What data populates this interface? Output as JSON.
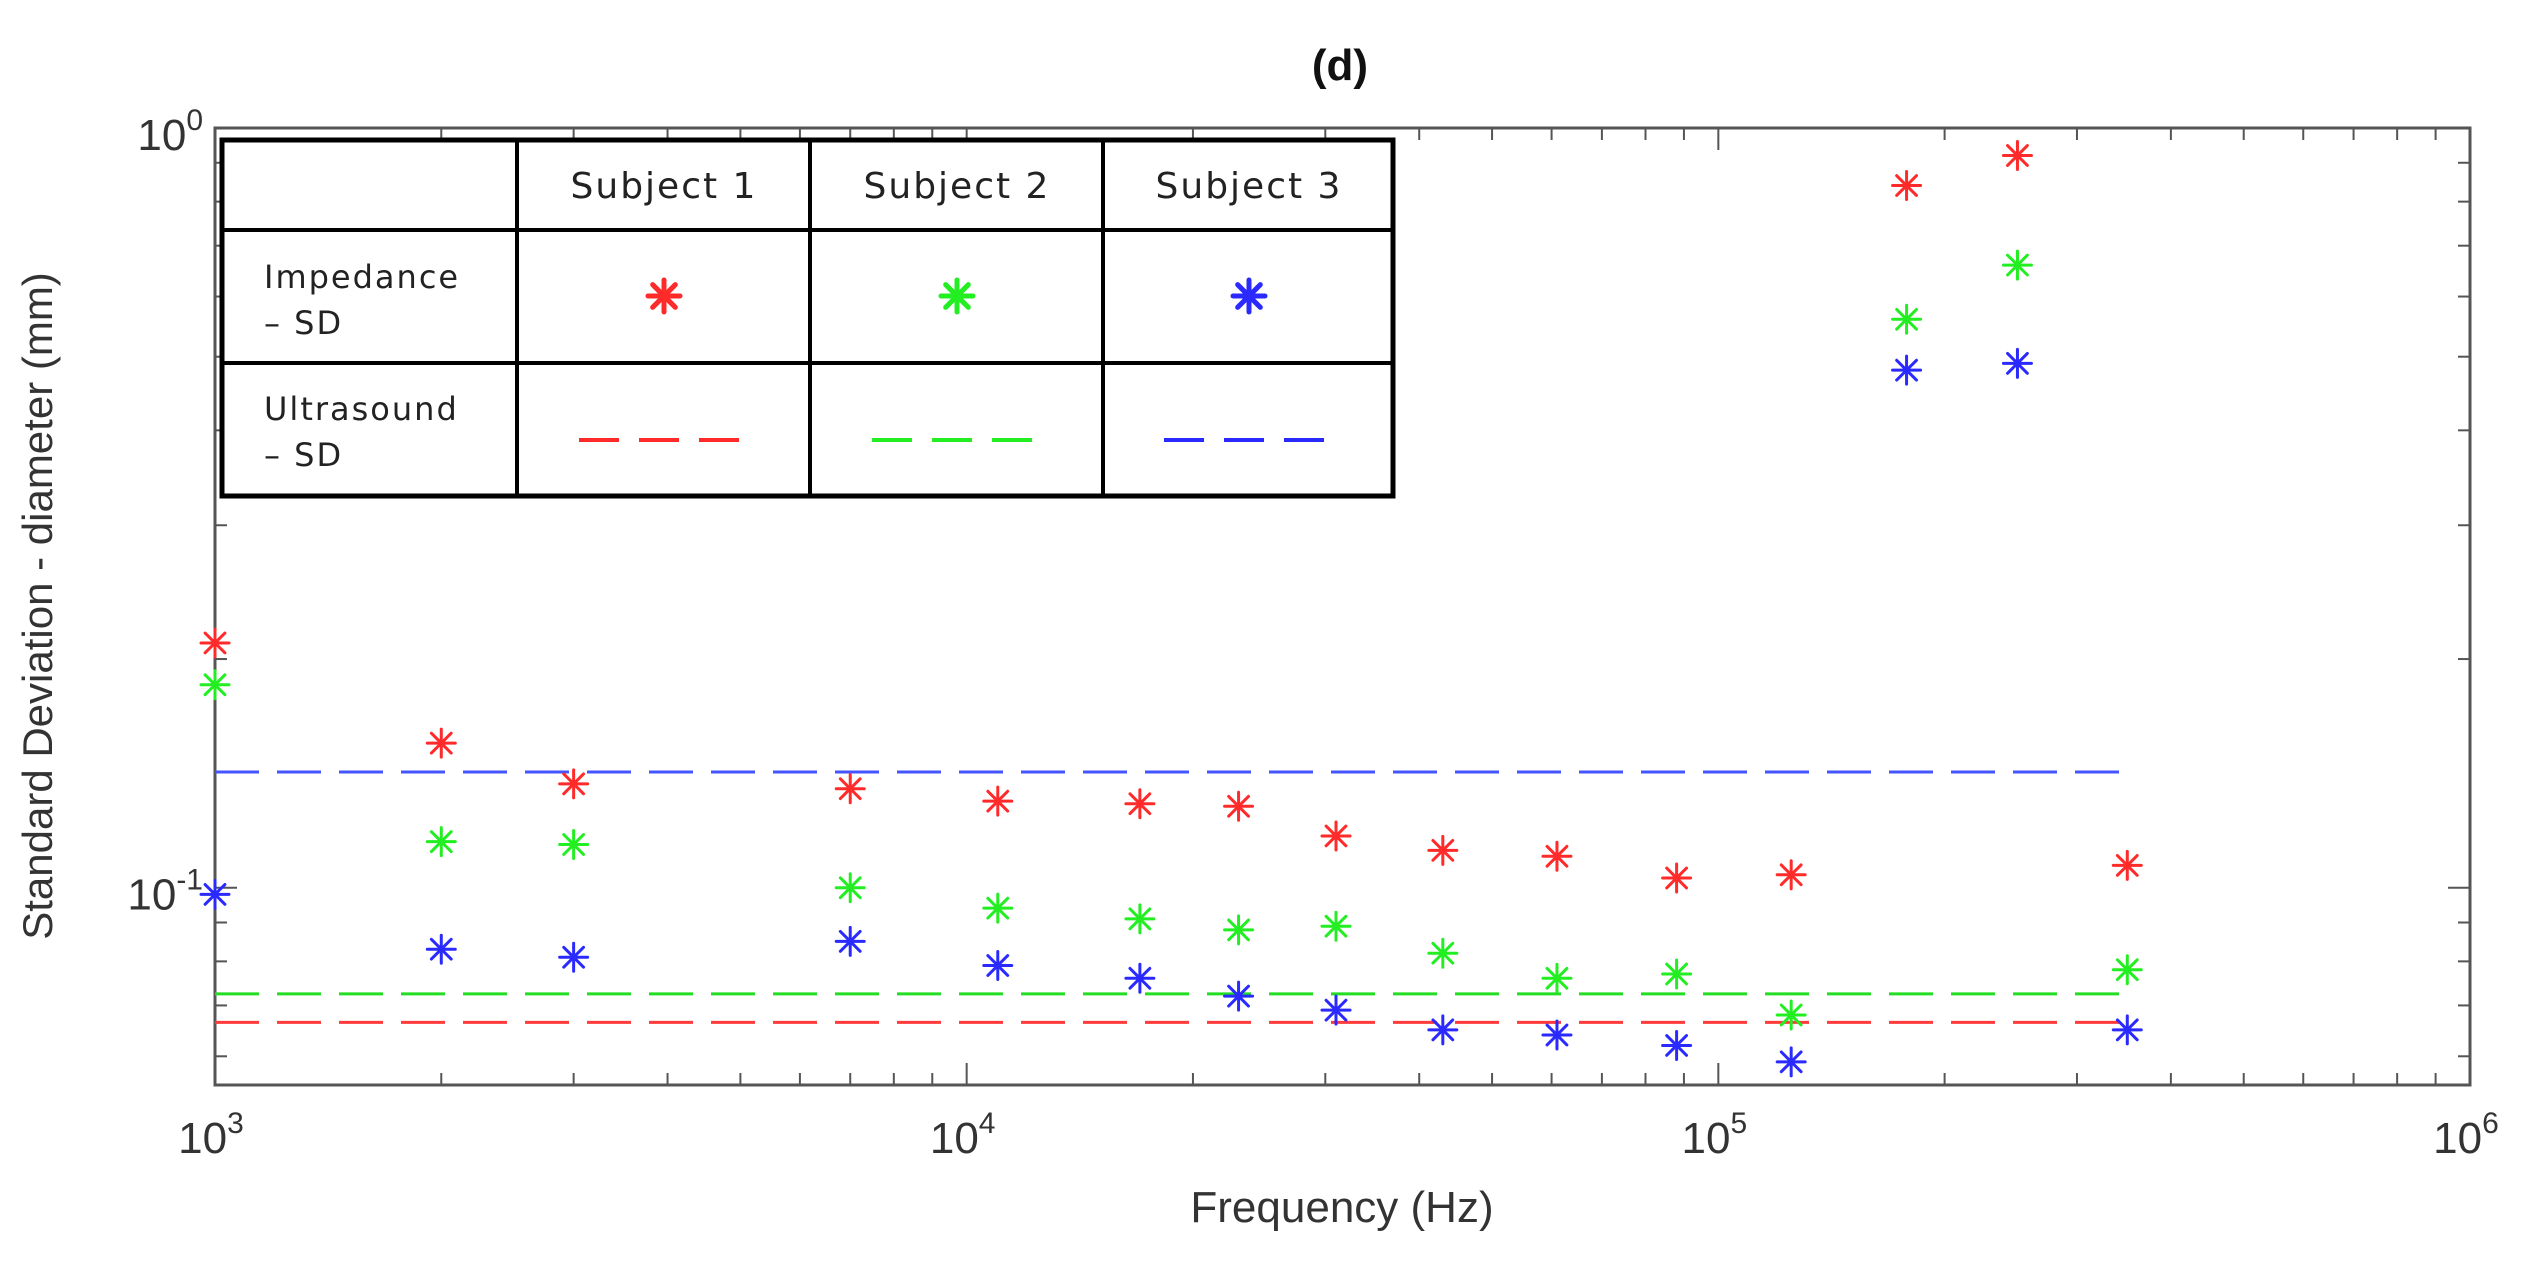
{
  "chart_data": {
    "type": "scatter",
    "title": "(d)",
    "xlabel": "Frequency (Hz)",
    "ylabel": "Standard Deviation -  diameter (mm)",
    "xscale": "log",
    "yscale": "log",
    "xlim": [
      1000,
      1000000
    ],
    "ylim": [
      0.055,
      1.0
    ],
    "x_ticks": [
      {
        "value": 1000,
        "base": "10",
        "exp": "3"
      },
      {
        "value": 10000,
        "base": "10",
        "exp": "4"
      },
      {
        "value": 100000,
        "base": "10",
        "exp": "5"
      },
      {
        "value": 1000000,
        "base": "10",
        "exp": "6"
      }
    ],
    "y_ticks": [
      {
        "value": 0.1,
        "base": "10",
        "exp": "-1"
      },
      {
        "value": 1.0,
        "base": "10",
        "exp": "0"
      }
    ],
    "grid": false,
    "series": [
      {
        "name": "Subject 1 - Impedance SD",
        "kind": "marker",
        "color": "#ff2a2a",
        "x": [
          1000,
          2000,
          3000,
          7000,
          11000,
          17000,
          23000,
          31000,
          43000,
          61000,
          88000,
          125000,
          178000,
          250000,
          350000
        ],
        "y": [
          0.21,
          0.155,
          0.137,
          0.135,
          0.13,
          0.129,
          0.128,
          0.117,
          0.112,
          0.11,
          0.103,
          0.104,
          0.84,
          0.92,
          0.107
        ]
      },
      {
        "name": "Subject 2 - Impedance SD",
        "kind": "marker",
        "color": "#22ee22",
        "x": [
          1000,
          2000,
          3000,
          7000,
          11000,
          17000,
          23000,
          31000,
          43000,
          61000,
          88000,
          125000,
          178000,
          250000,
          350000
        ],
        "y": [
          0.185,
          0.115,
          0.114,
          0.1,
          0.094,
          0.091,
          0.088,
          0.089,
          0.082,
          0.076,
          0.077,
          0.068,
          0.56,
          0.66,
          0.078
        ]
      },
      {
        "name": "Subject 3 - Impedance SD",
        "kind": "marker",
        "color": "#2a2aff",
        "x": [
          1000,
          2000,
          3000,
          7000,
          11000,
          17000,
          23000,
          31000,
          43000,
          61000,
          88000,
          125000,
          178000,
          250000,
          350000
        ],
        "y": [
          0.098,
          0.083,
          0.081,
          0.085,
          0.079,
          0.076,
          0.072,
          0.069,
          0.065,
          0.064,
          0.062,
          0.059,
          0.48,
          0.49,
          0.065
        ]
      },
      {
        "name": "Subject 1 - Ultrasound SD",
        "kind": "dashed-line",
        "color": "#ff3a3a",
        "x": [
          1000,
          350000
        ],
        "y": [
          0.0665,
          0.0665
        ]
      },
      {
        "name": "Subject 2 - Ultrasound SD",
        "kind": "dashed-line",
        "color": "#22dd22",
        "x": [
          1000,
          350000
        ],
        "y": [
          0.0725,
          0.0725
        ]
      },
      {
        "name": "Subject 3 - Ultrasound SD",
        "kind": "dashed-line",
        "color": "#4455ff",
        "x": [
          1000,
          350000
        ],
        "y": [
          0.142,
          0.142
        ]
      }
    ],
    "legend": {
      "placement": "top-left",
      "columns": [
        "Subject 1",
        "Subject 2",
        "Subject 3"
      ],
      "rows": [
        {
          "label_line1": "Impedance",
          "label_line2": "– SD",
          "kind": "marker"
        },
        {
          "label_line1": "Ultrasound",
          "label_line2": "– SD",
          "kind": "dashed-line"
        }
      ],
      "colors": [
        "#ff2a2a",
        "#22ee22",
        "#2a2aff"
      ]
    }
  }
}
